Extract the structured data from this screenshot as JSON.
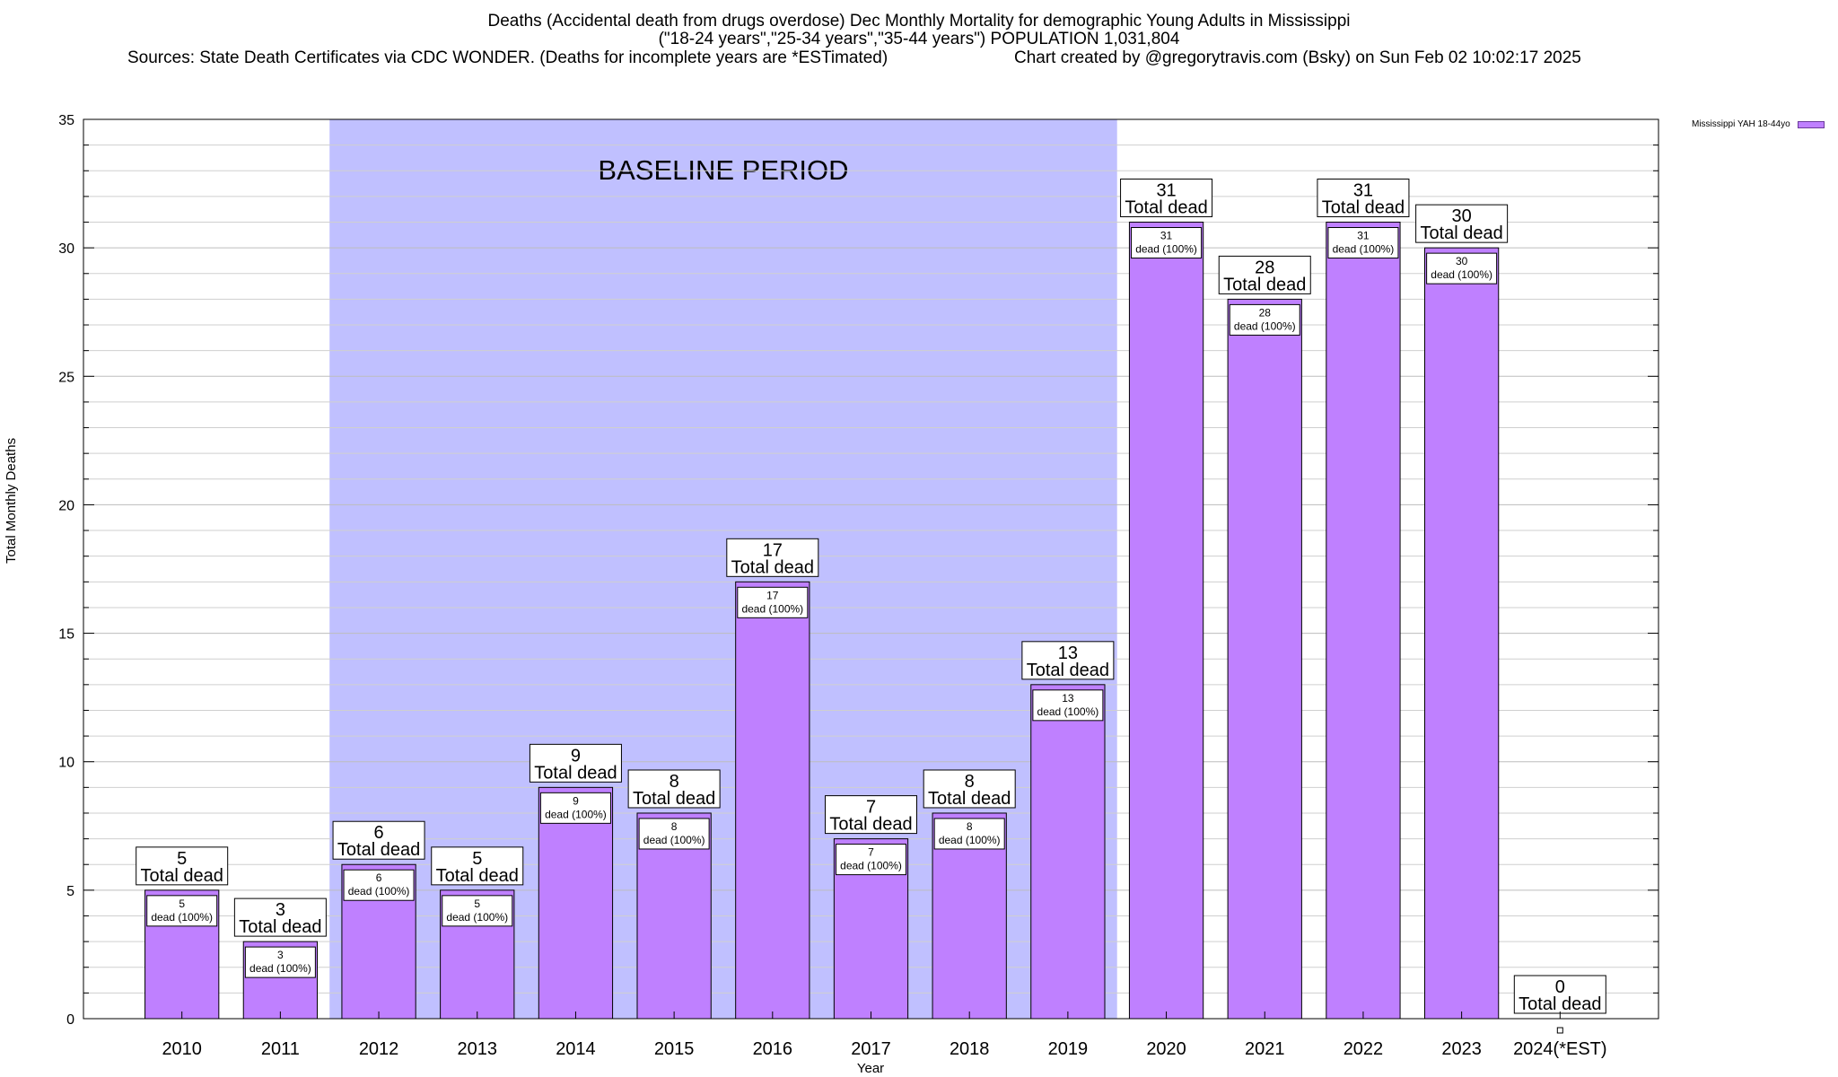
{
  "title": {
    "line1": "Deaths (Accidental death from drugs overdose) Dec Monthly Mortality for demographic Young Adults in Mississippi",
    "line2": "(\"18-24 years\",\"25-34 years\",\"35-44 years\") POPULATION 1,031,804",
    "sources": "Sources: State Death Certificates via CDC WONDER. (Deaths for incomplete years are *ESTimated)",
    "credit": "Chart created by @gregorytravis.com (Bsky) on Sun Feb 02 10:02:17 2025"
  },
  "chart_data": {
    "type": "bar",
    "xlabel": "Year",
    "ylabel": "Total Monthly Deaths",
    "ylim": [
      0,
      35
    ],
    "yticks": [
      0,
      5,
      10,
      15,
      20,
      25,
      30,
      35
    ],
    "grid": true,
    "legend_position": "top-right",
    "categories": [
      "2010",
      "2011",
      "2012",
      "2013",
      "2014",
      "2015",
      "2016",
      "2017",
      "2018",
      "2019",
      "2020",
      "2021",
      "2022",
      "2023",
      "2024(*EST)"
    ],
    "series": [
      {
        "name": "Mississippi YAH 18-44yo",
        "values": [
          5,
          3,
          6,
          5,
          9,
          8,
          17,
          7,
          8,
          13,
          31,
          28,
          31,
          30,
          0
        ]
      }
    ],
    "total_label": "Total dead",
    "inner_label_suffix": "dead (100%)",
    "annotation": {
      "text": "BASELINE PERIOD",
      "from": "2012",
      "to": "2019"
    },
    "colors": {
      "bar": "#bf80ff",
      "baseline": "#c0c0ff",
      "bar_edge": "#000000"
    }
  }
}
